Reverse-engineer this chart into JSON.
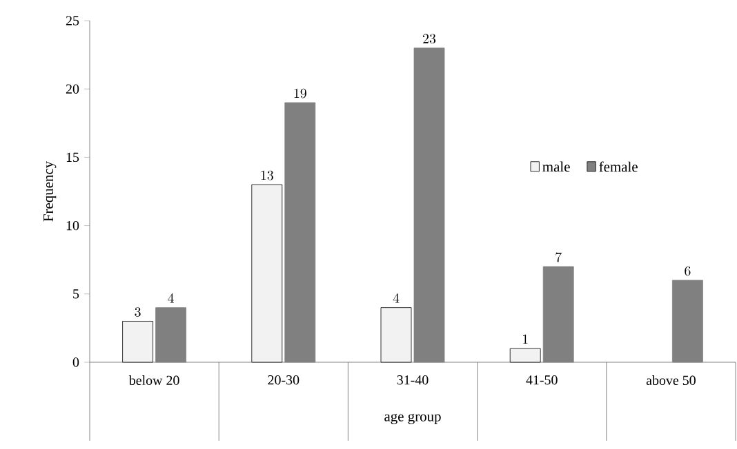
{
  "chart_data": {
    "type": "bar",
    "xlabel": "age group",
    "ylabel": "Frequency",
    "categories": [
      "below 20",
      "20-30",
      "31-40",
      "41-50",
      "above 50"
    ],
    "series": [
      {
        "name": "male",
        "color": "#f2f2f2",
        "values": [
          3,
          13,
          4,
          1,
          null
        ]
      },
      {
        "name": "female",
        "color": "#808080",
        "values": [
          4,
          19,
          23,
          7,
          6
        ]
      }
    ],
    "ylim": [
      0,
      25
    ],
    "yticks": [
      0,
      5,
      10,
      15,
      20,
      25
    ],
    "data_labels": true,
    "legend": "right",
    "grid": false
  }
}
